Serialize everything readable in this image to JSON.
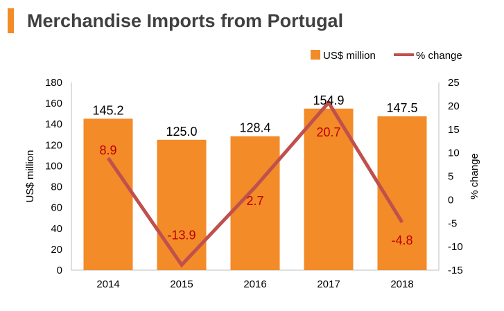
{
  "header": {
    "title": "Merchandise Imports from Portugal"
  },
  "chart_data": {
    "type": "bar",
    "categories": [
      "2014",
      "2015",
      "2016",
      "2017",
      "2018"
    ],
    "series": [
      {
        "name": "US$ million",
        "type": "bar",
        "axis": "left",
        "color": "#f28b28",
        "values": [
          145.2,
          125.0,
          128.4,
          154.9,
          147.5
        ],
        "labels": [
          "145.2",
          "125.0",
          "128.4",
          "154.9",
          "147.5"
        ]
      },
      {
        "name": "% change",
        "type": "line",
        "axis": "right",
        "color": "#c0504d",
        "values": [
          8.9,
          -13.9,
          2.7,
          20.7,
          -4.8
        ],
        "labels": [
          "8.9",
          "-13.9",
          "2.7",
          "20.7",
          "-4.8"
        ]
      }
    ],
    "y_left": {
      "label": "US$ million",
      "min": 0,
      "max": 180,
      "ticks": [
        "0",
        "20",
        "40",
        "60",
        "80",
        "100",
        "120",
        "140",
        "160",
        "180"
      ]
    },
    "y_right": {
      "label": "% change",
      "min": -15,
      "max": 25,
      "ticks": [
        "-15",
        "-10",
        "-5",
        "0",
        "5",
        "10",
        "15",
        "20",
        "25"
      ]
    },
    "legend_position": "top-right",
    "grid": false
  }
}
